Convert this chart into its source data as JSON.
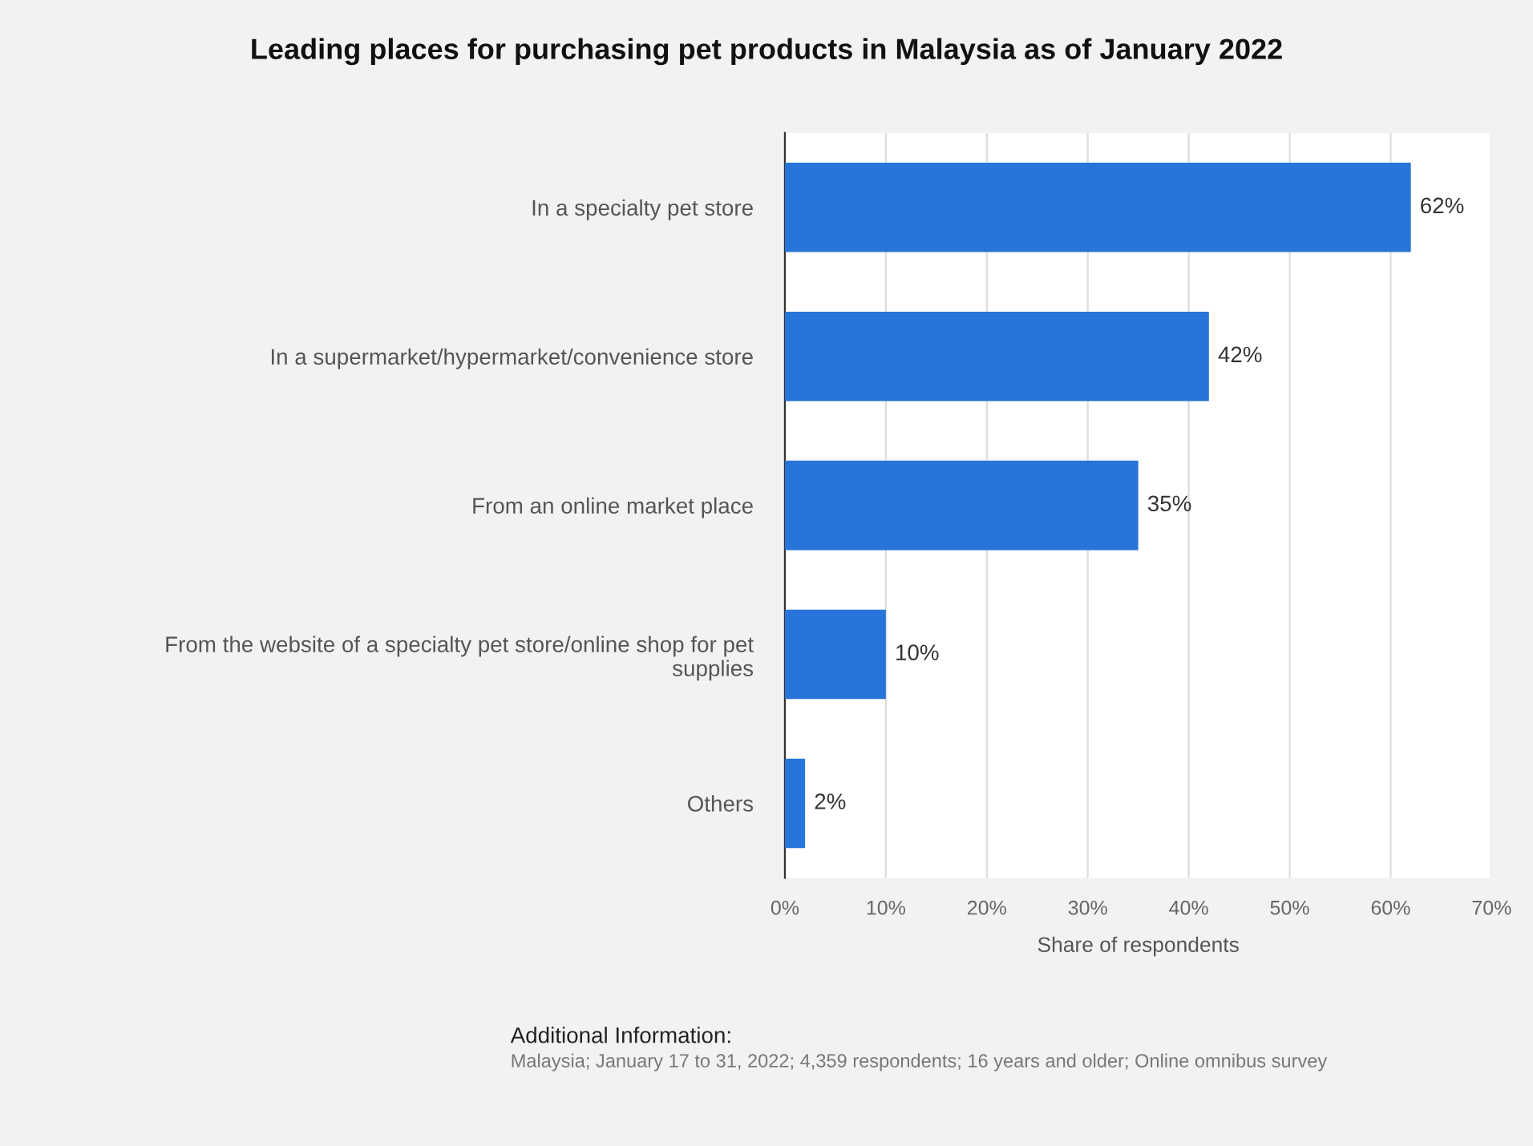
{
  "chart_data": {
    "type": "bar",
    "orientation": "horizontal",
    "title": "Leading places for purchasing pet products in Malaysia as of January 2022",
    "xlabel": "Share of respondents",
    "categories": [
      "In a specialty pet store",
      "In a supermarket/hypermarket/convenience store",
      "From an online market place",
      "From the website of a specialty pet store/online shop for pet supplies",
      "Others"
    ],
    "values": [
      62,
      42,
      35,
      10,
      2
    ],
    "value_labels": [
      "62%",
      "42%",
      "35%",
      "10%",
      "2%"
    ],
    "color": "#2875d9",
    "xlim": [
      0,
      70
    ],
    "xticks": [
      {
        "value": 0,
        "label": "0%"
      },
      {
        "value": 10,
        "label": "10%"
      },
      {
        "value": 20,
        "label": "20%"
      },
      {
        "value": 30,
        "label": "30%"
      },
      {
        "value": 40,
        "label": "40%"
      },
      {
        "value": 50,
        "label": "50%"
      },
      {
        "value": 60,
        "label": "60%"
      },
      {
        "value": 70,
        "label": "70%"
      }
    ],
    "grid": "x",
    "annotations": [
      "Additional Information:",
      "Malaysia; January 17 to 31, 2022; 4,359 respondents; 16 years and older; Online omnibus survey"
    ]
  }
}
